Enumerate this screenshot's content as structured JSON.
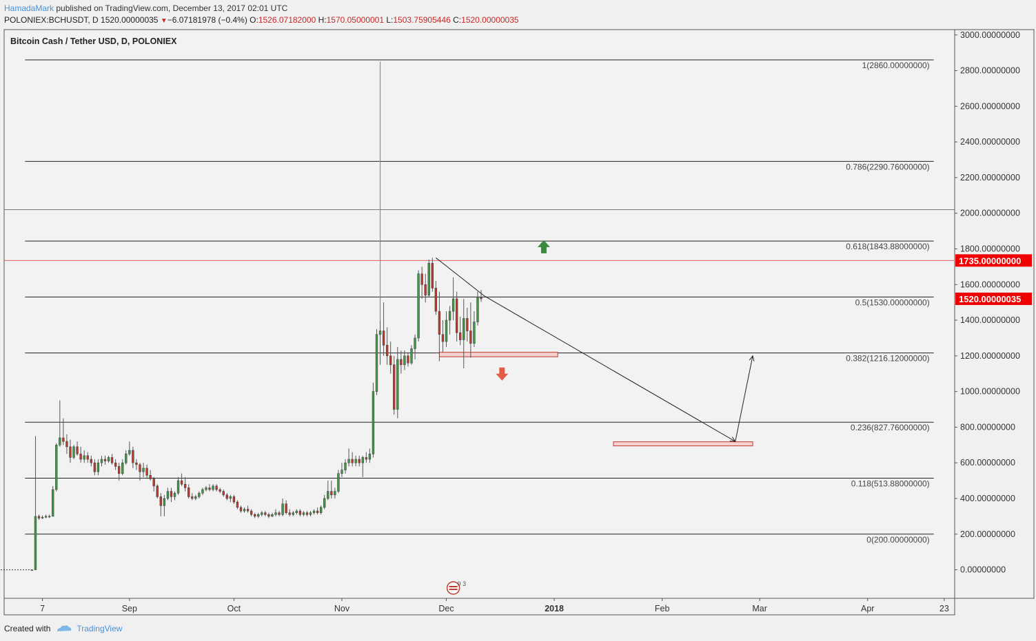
{
  "header": {
    "author": "HamadaMark",
    "published_text": " published on TradingView.com, December 13, 2017 02:01 UTC",
    "symbol": "POLONIEX:BCHUSDT, D",
    "price": "1520.00000035",
    "change_arrow": "▼",
    "change": "−6.07181978 (−0.4%)",
    "o_label": "O:",
    "o_value": "1526.07182000",
    "h_label": "H:",
    "h_value": "1570.05000001",
    "l_label": "L:",
    "l_value": "1503.75905446",
    "c_label": "C:",
    "c_value": "1520.00000035"
  },
  "footer": {
    "created_with": "Created with",
    "brand": "TradingView"
  },
  "colors": {
    "up": "#3d9a45",
    "down": "#c0392b",
    "price_tag": "#f00000",
    "arrow_up": "#3a8a3e",
    "arrow_down": "#e25c46",
    "zone_fill": "#f7d0d0",
    "zone_stroke": "#c0392b",
    "bg": "#f2f2f2"
  },
  "chart_data": {
    "type": "candlestick",
    "title": "Bitcoin Cash / Tether USD, D, POLONIEX",
    "x_ticks": [
      {
        "date": "2017-08-07",
        "label": "7"
      },
      {
        "date": "2017-09-01",
        "label": "Sep"
      },
      {
        "date": "2017-10-01",
        "label": "Oct"
      },
      {
        "date": "2017-11-01",
        "label": "Nov"
      },
      {
        "date": "2017-12-01",
        "label": "Dec"
      },
      {
        "date": "2018-01-01",
        "label": "2018",
        "bold": true
      },
      {
        "date": "2018-02-01",
        "label": "Feb"
      },
      {
        "date": "2018-03-01",
        "label": "Mar"
      },
      {
        "date": "2018-04-01",
        "label": "Apr"
      },
      {
        "date": "2018-04-23",
        "label": "23"
      }
    ],
    "y_ticks": [
      "3000.00000000",
      "2800.00000000",
      "2600.00000000",
      "2400.00000000",
      "2200.00000000",
      "2000.00000000",
      "1800.00000000",
      "1600.00000000",
      "1400.00000000",
      "1200.00000000",
      "1000.00000000",
      "800.00000000",
      "600.00000000",
      "400.00000000",
      "200.00000000",
      "0.00000000"
    ],
    "y_tick_values": [
      3000,
      2800,
      2600,
      2400,
      2200,
      2000,
      1800,
      1600,
      1400,
      1200,
      1000,
      800,
      600,
      400,
      200,
      0
    ],
    "ylim": [
      -160,
      3030
    ],
    "xlim": [
      "2017-07-27",
      "2018-04-26"
    ],
    "fib_levels": [
      {
        "value": 2860,
        "label": "1(2860.00000000)"
      },
      {
        "value": 2290.76,
        "label": "0.786(2290.76000000)"
      },
      {
        "value": 1843.88,
        "label": "0.618(1843.88000000)"
      },
      {
        "value": 1530,
        "label": "0.5(1530.00000000)"
      },
      {
        "value": 1216.12,
        "label": "0.382(1216.12000000)"
      },
      {
        "value": 827.76,
        "label": "0.236(827.76000000)"
      },
      {
        "value": 513.88,
        "label": "0.118(513.88000000)"
      },
      {
        "value": 200,
        "label": "0(200.00000000)"
      }
    ],
    "fib_start": "2017-08-02",
    "fib_end": "2018-04-20",
    "extra_hline": {
      "value": 2020
    },
    "red_hline": {
      "value": 1735,
      "tag": "1735.00000000"
    },
    "last_price": {
      "value": 1520.00000035,
      "tag": "1520.00000035"
    },
    "trendline": {
      "from": [
        "2017-11-28",
        1750
      ],
      "to": [
        "2017-12-12",
        1535
      ]
    },
    "projection": {
      "from": [
        "2017-12-12",
        1535
      ],
      "to": [
        "2018-02-22",
        720
      ]
    },
    "projection_up": {
      "from": [
        "2018-02-22",
        720
      ],
      "to": [
        "2018-02-27",
        1200
      ]
    },
    "zones": [
      {
        "x1": "2017-11-29",
        "x2": "2018-01-02",
        "y1": 1195,
        "y2": 1220
      },
      {
        "x1": "2018-01-18",
        "x2": "2018-02-27",
        "y1": 695,
        "y2": 718
      }
    ],
    "arrows": [
      {
        "date": "2017-12-29",
        "value": 1810,
        "dir": "up"
      },
      {
        "date": "2017-12-17",
        "value": 1100,
        "dir": "down"
      }
    ],
    "flat_line": {
      "from": [
        "2017-07-26",
        0
      ],
      "to": [
        "2017-08-04",
        0
      ]
    },
    "spike_line": {
      "date": "2017-11-12",
      "value": 2850
    },
    "candles": [
      [
        "2017-08-04",
        0,
        0,
        0,
        0
      ],
      [
        "2017-08-05",
        0,
        750,
        0,
        300
      ],
      [
        "2017-08-06",
        300,
        310,
        280,
        290
      ],
      [
        "2017-08-07",
        290,
        305,
        285,
        295
      ],
      [
        "2017-08-08",
        295,
        310,
        290,
        300
      ],
      [
        "2017-08-09",
        300,
        310,
        290,
        300
      ],
      [
        "2017-08-10",
        300,
        470,
        300,
        450
      ],
      [
        "2017-08-11",
        450,
        710,
        440,
        700
      ],
      [
        "2017-08-12",
        700,
        950,
        690,
        740
      ],
      [
        "2017-08-13",
        740,
        850,
        700,
        720
      ],
      [
        "2017-08-14",
        720,
        760,
        650,
        690
      ],
      [
        "2017-08-15",
        690,
        730,
        600,
        630
      ],
      [
        "2017-08-16",
        630,
        700,
        620,
        690
      ],
      [
        "2017-08-17",
        690,
        720,
        640,
        650
      ],
      [
        "2017-08-18",
        650,
        690,
        600,
        620
      ],
      [
        "2017-08-19",
        620,
        670,
        600,
        640
      ],
      [
        "2017-08-20",
        640,
        660,
        600,
        620
      ],
      [
        "2017-08-21",
        620,
        640,
        580,
        600
      ],
      [
        "2017-08-22",
        600,
        620,
        530,
        550
      ],
      [
        "2017-08-23",
        550,
        620,
        530,
        600
      ],
      [
        "2017-08-24",
        600,
        640,
        580,
        620
      ],
      [
        "2017-08-25",
        620,
        640,
        590,
        610
      ],
      [
        "2017-08-26",
        610,
        640,
        600,
        630
      ],
      [
        "2017-08-27",
        630,
        650,
        590,
        600
      ],
      [
        "2017-08-28",
        600,
        620,
        560,
        580
      ],
      [
        "2017-08-29",
        580,
        600,
        500,
        540
      ],
      [
        "2017-08-30",
        540,
        620,
        530,
        600
      ],
      [
        "2017-08-31",
        600,
        670,
        590,
        650
      ],
      [
        "2017-09-01",
        650,
        720,
        640,
        670
      ],
      [
        "2017-09-02",
        670,
        690,
        570,
        600
      ],
      [
        "2017-09-03",
        600,
        620,
        560,
        590
      ],
      [
        "2017-09-04",
        590,
        600,
        500,
        550
      ],
      [
        "2017-09-05",
        550,
        600,
        520,
        570
      ],
      [
        "2017-09-06",
        570,
        590,
        510,
        530
      ],
      [
        "2017-09-07",
        530,
        560,
        500,
        510
      ],
      [
        "2017-09-08",
        510,
        520,
        440,
        470
      ],
      [
        "2017-09-09",
        470,
        480,
        400,
        410
      ],
      [
        "2017-09-10",
        410,
        430,
        300,
        360
      ],
      [
        "2017-09-11",
        360,
        420,
        300,
        400
      ],
      [
        "2017-09-12",
        400,
        460,
        390,
        440
      ],
      [
        "2017-09-13",
        440,
        460,
        380,
        410
      ],
      [
        "2017-09-14",
        410,
        440,
        390,
        430
      ],
      [
        "2017-09-15",
        430,
        520,
        420,
        500
      ],
      [
        "2017-09-16",
        500,
        540,
        470,
        480
      ],
      [
        "2017-09-17",
        480,
        520,
        440,
        460
      ],
      [
        "2017-09-18",
        460,
        480,
        400,
        410
      ],
      [
        "2017-09-19",
        410,
        430,
        390,
        400
      ],
      [
        "2017-09-20",
        400,
        420,
        390,
        410
      ],
      [
        "2017-09-21",
        410,
        440,
        400,
        430
      ],
      [
        "2017-09-22",
        430,
        460,
        420,
        450
      ],
      [
        "2017-09-23",
        450,
        470,
        440,
        460
      ],
      [
        "2017-09-24",
        460,
        480,
        440,
        450
      ],
      [
        "2017-09-25",
        450,
        480,
        440,
        470
      ],
      [
        "2017-09-26",
        470,
        480,
        440,
        450
      ],
      [
        "2017-09-27",
        450,
        460,
        430,
        440
      ],
      [
        "2017-09-28",
        440,
        450,
        410,
        420
      ],
      [
        "2017-09-29",
        420,
        430,
        390,
        400
      ],
      [
        "2017-09-30",
        400,
        420,
        380,
        410
      ],
      [
        "2017-10-01",
        410,
        420,
        370,
        380
      ],
      [
        "2017-10-02",
        380,
        390,
        340,
        350
      ],
      [
        "2017-10-03",
        350,
        360,
        320,
        330
      ],
      [
        "2017-10-04",
        330,
        350,
        320,
        340
      ],
      [
        "2017-10-05",
        340,
        360,
        320,
        330
      ],
      [
        "2017-10-06",
        330,
        340,
        300,
        310
      ],
      [
        "2017-10-07",
        310,
        320,
        290,
        300
      ],
      [
        "2017-10-08",
        300,
        320,
        290,
        310
      ],
      [
        "2017-10-09",
        310,
        330,
        300,
        320
      ],
      [
        "2017-10-10",
        320,
        330,
        300,
        310
      ],
      [
        "2017-10-11",
        310,
        320,
        290,
        300
      ],
      [
        "2017-10-12",
        300,
        320,
        295,
        310
      ],
      [
        "2017-10-13",
        310,
        340,
        300,
        320
      ],
      [
        "2017-10-14",
        320,
        330,
        300,
        310
      ],
      [
        "2017-10-15",
        310,
        400,
        300,
        370
      ],
      [
        "2017-10-16",
        370,
        390,
        310,
        320
      ],
      [
        "2017-10-17",
        320,
        340,
        300,
        310
      ],
      [
        "2017-10-18",
        310,
        330,
        300,
        320
      ],
      [
        "2017-10-19",
        320,
        340,
        310,
        330
      ],
      [
        "2017-10-20",
        330,
        340,
        300,
        310
      ],
      [
        "2017-10-21",
        310,
        330,
        300,
        320
      ],
      [
        "2017-10-22",
        320,
        330,
        300,
        310
      ],
      [
        "2017-10-23",
        310,
        330,
        300,
        320
      ],
      [
        "2017-10-24",
        320,
        340,
        310,
        330
      ],
      [
        "2017-10-25",
        330,
        350,
        310,
        320
      ],
      [
        "2017-10-26",
        320,
        360,
        310,
        350
      ],
      [
        "2017-10-27",
        350,
        420,
        340,
        400
      ],
      [
        "2017-10-28",
        400,
        500,
        390,
        440
      ],
      [
        "2017-10-29",
        440,
        500,
        400,
        420
      ],
      [
        "2017-10-30",
        420,
        460,
        400,
        440
      ],
      [
        "2017-10-31",
        440,
        560,
        430,
        540
      ],
      [
        "2017-11-01",
        540,
        600,
        520,
        560
      ],
      [
        "2017-11-02",
        560,
        620,
        540,
        600
      ],
      [
        "2017-11-03",
        600,
        680,
        580,
        620
      ],
      [
        "2017-11-04",
        620,
        660,
        580,
        600
      ],
      [
        "2017-11-05",
        600,
        640,
        580,
        620
      ],
      [
        "2017-11-06",
        620,
        640,
        580,
        600
      ],
      [
        "2017-11-07",
        600,
        640,
        520,
        630
      ],
      [
        "2017-11-08",
        630,
        660,
        600,
        620
      ],
      [
        "2017-11-09",
        620,
        680,
        600,
        650
      ],
      [
        "2017-11-10",
        650,
        1050,
        630,
        1000
      ],
      [
        "2017-11-11",
        1000,
        1350,
        980,
        1320
      ],
      [
        "2017-11-12",
        1320,
        2850,
        1150,
        1340
      ],
      [
        "2017-11-13",
        1340,
        1500,
        1200,
        1260
      ],
      [
        "2017-11-14",
        1260,
        1360,
        1150,
        1200
      ],
      [
        "2017-11-15",
        1200,
        1280,
        1100,
        1150
      ],
      [
        "2017-11-16",
        1150,
        1200,
        870,
        900
      ],
      [
        "2017-11-17",
        900,
        1250,
        850,
        1180
      ],
      [
        "2017-11-18",
        1180,
        1230,
        1100,
        1150
      ],
      [
        "2017-11-19",
        1150,
        1230,
        1120,
        1200
      ],
      [
        "2017-11-20",
        1200,
        1220,
        1140,
        1160
      ],
      [
        "2017-11-21",
        1160,
        1260,
        1150,
        1240
      ],
      [
        "2017-11-22",
        1240,
        1320,
        1180,
        1300
      ],
      [
        "2017-11-23",
        1300,
        1680,
        1280,
        1660
      ],
      [
        "2017-11-24",
        1660,
        1700,
        1520,
        1600
      ],
      [
        "2017-11-25",
        1600,
        1660,
        1500,
        1540
      ],
      [
        "2017-11-26",
        1540,
        1740,
        1530,
        1720
      ],
      [
        "2017-11-27",
        1720,
        1750,
        1560,
        1580
      ],
      [
        "2017-11-28",
        1580,
        1620,
        1430,
        1450
      ],
      [
        "2017-11-29",
        1450,
        1560,
        1170,
        1320
      ],
      [
        "2017-11-30",
        1320,
        1400,
        1220,
        1280
      ],
      [
        "2017-12-01",
        1280,
        1450,
        1250,
        1400
      ],
      [
        "2017-12-02",
        1400,
        1480,
        1320,
        1450
      ],
      [
        "2017-12-03",
        1450,
        1640,
        1400,
        1520
      ],
      [
        "2017-12-04",
        1520,
        1560,
        1280,
        1330
      ],
      [
        "2017-12-05",
        1330,
        1420,
        1260,
        1290
      ],
      [
        "2017-12-06",
        1290,
        1520,
        1130,
        1410
      ],
      [
        "2017-12-07",
        1410,
        1470,
        1280,
        1340
      ],
      [
        "2017-12-08",
        1340,
        1500,
        1190,
        1270
      ],
      [
        "2017-12-09",
        1270,
        1450,
        1250,
        1390
      ],
      [
        "2017-12-10",
        1390,
        1560,
        1370,
        1526
      ],
      [
        "2017-12-11",
        1526,
        1570,
        1503,
        1520
      ]
    ]
  }
}
